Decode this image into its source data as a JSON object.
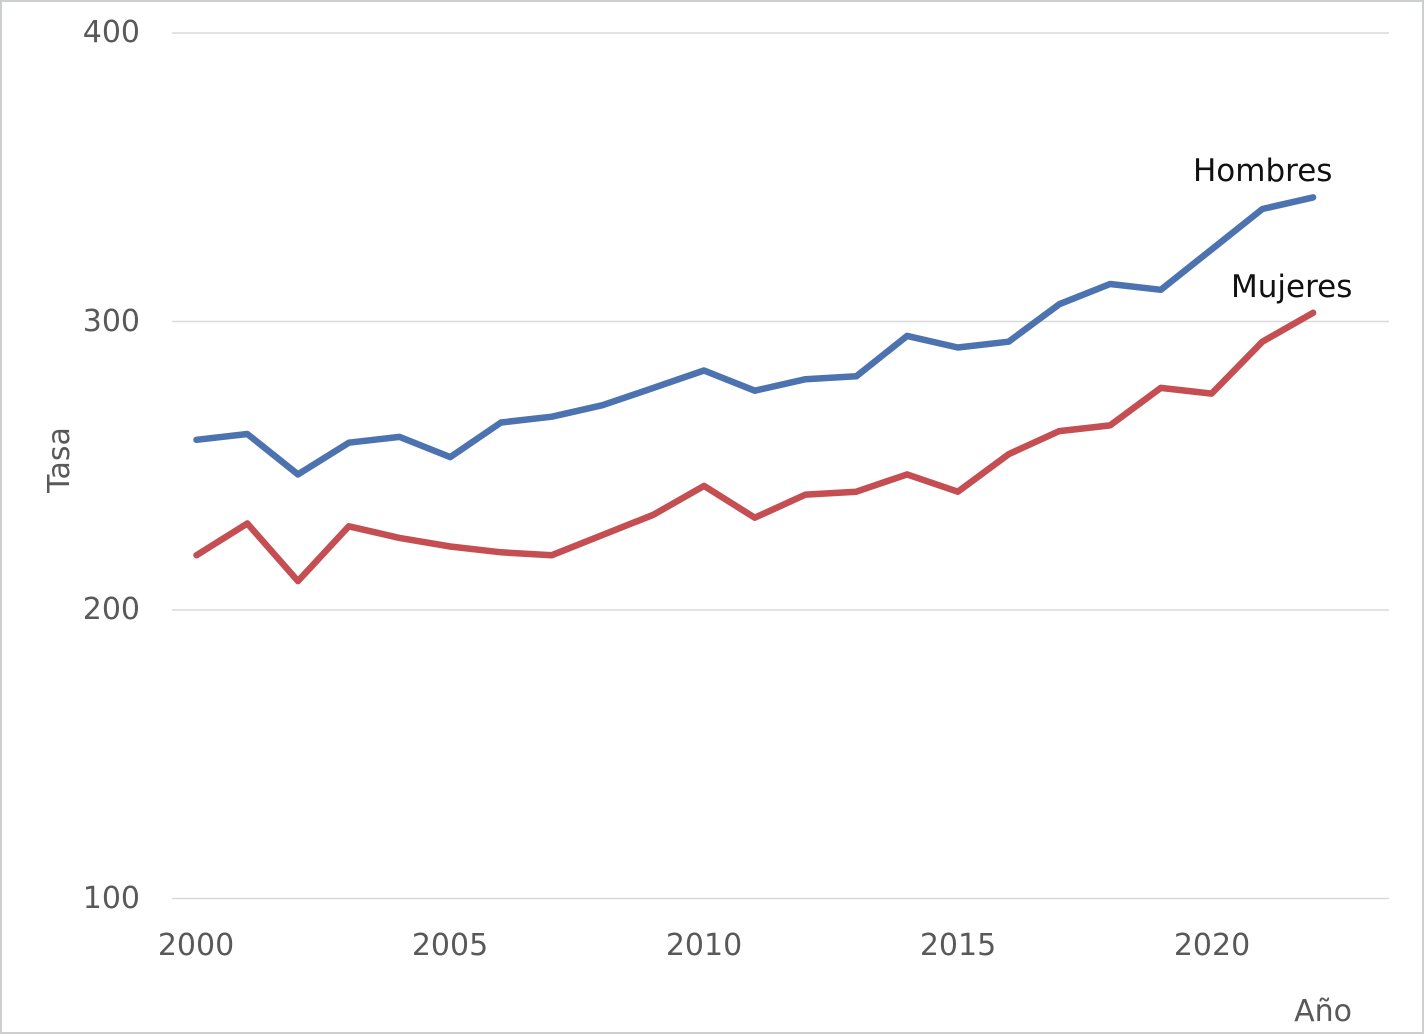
{
  "chart_data": {
    "type": "line",
    "title": "",
    "xlabel": "Año",
    "ylabel": "Tasa",
    "x": [
      2000,
      2001,
      2002,
      2003,
      2004,
      2005,
      2006,
      2007,
      2008,
      2009,
      2010,
      2011,
      2012,
      2013,
      2014,
      2015,
      2016,
      2017,
      2018,
      2019,
      2020,
      2021,
      2022
    ],
    "series": [
      {
        "name": "Hombres",
        "color": "#4C72B0",
        "values": [
          259,
          261,
          247,
          258,
          260,
          253,
          265,
          267,
          271,
          277,
          283,
          276,
          280,
          281,
          295,
          291,
          293,
          306,
          313,
          311,
          325,
          339,
          343
        ]
      },
      {
        "name": "Mujeres",
        "color": "#C44E52",
        "values": [
          219,
          230,
          210,
          229,
          225,
          222,
          220,
          219,
          226,
          233,
          243,
          232,
          240,
          241,
          247,
          241,
          254,
          262,
          264,
          277,
          275,
          293,
          303
        ]
      }
    ],
    "y_ticks": [
      400,
      300,
      200,
      100
    ],
    "x_ticks": [
      2000,
      2005,
      2010,
      2015,
      2020
    ],
    "ylim": [
      100,
      400
    ],
    "xlim": [
      2000,
      2022
    ],
    "grid": "horizontal gridlines only",
    "legend_position": "inline labels at right end of lines",
    "grid_color": "#d9d9d9",
    "axis_text_color": "#595959",
    "series_label_color": "#111111",
    "background_color": "#ffffff"
  }
}
